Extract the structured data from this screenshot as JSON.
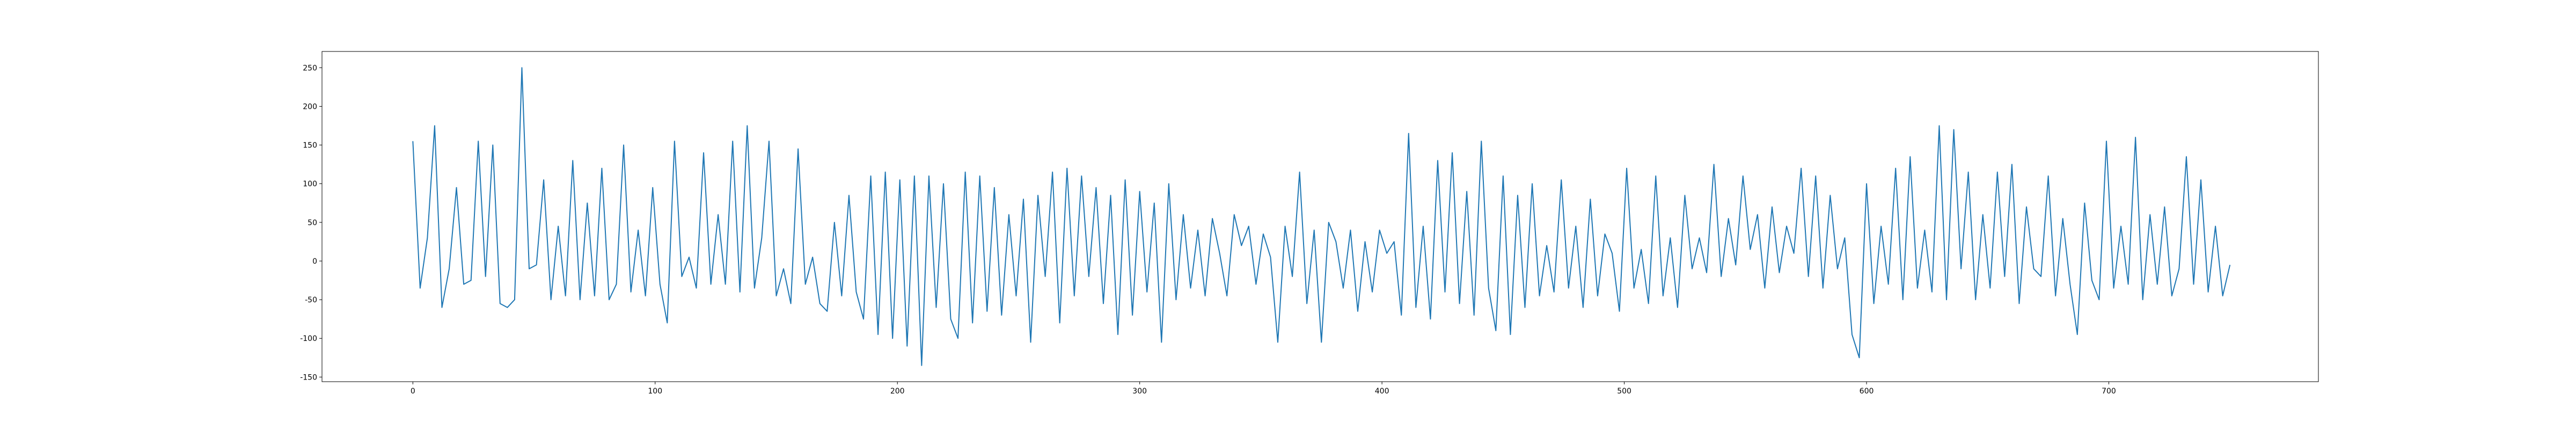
{
  "chart_data": {
    "type": "line",
    "x": [
      0,
      3,
      6,
      9,
      12,
      15,
      18,
      21,
      24,
      27,
      30,
      33,
      36,
      39,
      42,
      45,
      48,
      51,
      54,
      57,
      60,
      63,
      66,
      69,
      72,
      75,
      78,
      81,
      84,
      87,
      90,
      93,
      96,
      99,
      102,
      105,
      108,
      111,
      114,
      117,
      120,
      123,
      126,
      129,
      132,
      135,
      138,
      141,
      144,
      147,
      150,
      153,
      156,
      159,
      162,
      165,
      168,
      171,
      174,
      177,
      180,
      183,
      186,
      189,
      192,
      195,
      198,
      201,
      204,
      207,
      210,
      213,
      216,
      219,
      222,
      225,
      228,
      231,
      234,
      237,
      240,
      243,
      246,
      249,
      252,
      255,
      258,
      261,
      264,
      267,
      270,
      273,
      276,
      279,
      282,
      285,
      288,
      291,
      294,
      297,
      300,
      303,
      306,
      309,
      312,
      315,
      318,
      321,
      324,
      327,
      330,
      333,
      336,
      339,
      342,
      345,
      348,
      351,
      354,
      357,
      360,
      363,
      366,
      369,
      372,
      375,
      378,
      381,
      384,
      387,
      390,
      393,
      396,
      399,
      402,
      405,
      408,
      411,
      414,
      417,
      420,
      423,
      426,
      429,
      432,
      435,
      438,
      441,
      444,
      447,
      450,
      453,
      456,
      459,
      462,
      465,
      468,
      471,
      474,
      477,
      480,
      483,
      486,
      489,
      492,
      495,
      498,
      501,
      504,
      507,
      510,
      513,
      516,
      519,
      522,
      525,
      528,
      531,
      534,
      537,
      540,
      543,
      546,
      549,
      552,
      555,
      558,
      561,
      564,
      567,
      570,
      573,
      576,
      579,
      582,
      585,
      588,
      591,
      594,
      597,
      600,
      603,
      606,
      609,
      612,
      615,
      618,
      621,
      624,
      627,
      630,
      633,
      636,
      639,
      642,
      645,
      648,
      651,
      654,
      657,
      660,
      663,
      666,
      669,
      672,
      675,
      678,
      681,
      684,
      687,
      690,
      693,
      696,
      699,
      702,
      705,
      708,
      711,
      714,
      717,
      720,
      723,
      726,
      729,
      732,
      735,
      738,
      741,
      744,
      747,
      750
    ],
    "series": [
      {
        "color": "#1f77b4",
        "values": [
          155,
          -35,
          30,
          175,
          -60,
          -10,
          95,
          -30,
          -25,
          155,
          -20,
          150,
          -55,
          -60,
          -50,
          250,
          -10,
          -5,
          105,
          -50,
          45,
          -45,
          130,
          -50,
          75,
          -45,
          120,
          -50,
          -30,
          150,
          -40,
          40,
          -45,
          95,
          -30,
          -80,
          155,
          -20,
          5,
          -35,
          140,
          -30,
          60,
          -30,
          155,
          -40,
          175,
          -35,
          30,
          155,
          -45,
          -10,
          -55,
          145,
          -30,
          5,
          -55,
          -65,
          50,
          -45,
          85,
          -40,
          -75,
          110,
          -95,
          115,
          -100,
          105,
          -110,
          110,
          -135,
          110,
          -60,
          100,
          -75,
          -100,
          115,
          -80,
          110,
          -65,
          95,
          -70,
          60,
          -45,
          80,
          -105,
          85,
          -20,
          115,
          -80,
          120,
          -45,
          110,
          -20,
          95,
          -55,
          85,
          -95,
          105,
          -70,
          90,
          -40,
          75,
          -105,
          100,
          -50,
          60,
          -35,
          40,
          -45,
          55,
          10,
          -45,
          60,
          20,
          45,
          -30,
          35,
          5,
          -105,
          45,
          -20,
          115,
          -55,
          40,
          -105,
          50,
          25,
          -35,
          40,
          -65,
          25,
          -40,
          40,
          10,
          25,
          -70,
          165,
          -60,
          45,
          -75,
          130,
          -40,
          140,
          -55,
          90,
          -70,
          155,
          -35,
          -90,
          110,
          -95,
          85,
          -60,
          100,
          -45,
          20,
          -40,
          105,
          -35,
          45,
          -60,
          80,
          -45,
          35,
          10,
          -65,
          120,
          -35,
          15,
          -55,
          110,
          -45,
          30,
          -60,
          85,
          -10,
          30,
          -15,
          125,
          -20,
          55,
          -5,
          110,
          15,
          60,
          -35,
          70,
          -15,
          45,
          10,
          120,
          -20,
          110,
          -35,
          85,
          -10,
          30,
          -95,
          -125,
          100,
          -55,
          45,
          -30,
          120,
          -50,
          135,
          -35,
          40,
          -40,
          175,
          -50,
          170,
          -10,
          115,
          -50,
          60,
          -35,
          115,
          -20,
          125,
          -55,
          70,
          -10,
          -20,
          110,
          -45,
          55,
          -30,
          -95,
          75,
          -25,
          -50,
          155,
          -35,
          45,
          -30,
          160,
          -50,
          60,
          -30,
          70,
          -45,
          -10,
          135,
          -30,
          105,
          -40,
          45,
          -45,
          -5
        ]
      }
    ],
    "xlim": [
      -37.5,
      786.5
    ],
    "ylim": [
      -156,
      271
    ],
    "xticks": [
      0,
      100,
      200,
      300,
      400,
      500,
      600,
      700
    ],
    "yticks": [
      -150,
      -100,
      -50,
      0,
      50,
      100,
      150,
      200,
      250
    ]
  }
}
